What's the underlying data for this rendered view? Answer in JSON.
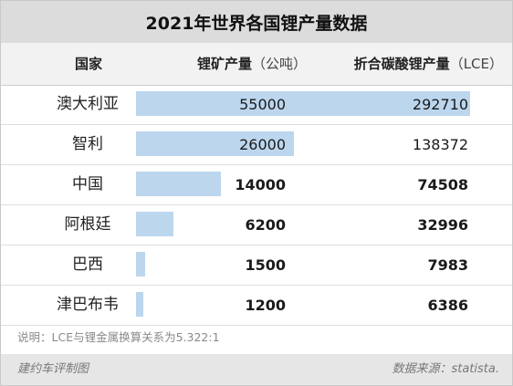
{
  "title": "2021年世界各国锂产量数据",
  "header": {
    "country": "国家",
    "mine_label": "锂矿产量",
    "mine_unit": "（公吨）",
    "lce_label": "折合碳酸锂产量",
    "lce_unit": "（LCE）"
  },
  "rows": [
    {
      "country": "澳大利亚",
      "mine": "55000",
      "lce": "292710"
    },
    {
      "country": "智利",
      "mine": "26000",
      "lce": "138372"
    },
    {
      "country": "中国",
      "mine": "14000",
      "lce": "74508"
    },
    {
      "country": "阿根廷",
      "mine": "6200",
      "lce": "32996"
    },
    {
      "country": "巴西",
      "mine": "1500",
      "lce": "7983"
    },
    {
      "country": "津巴布韦",
      "mine": "1200",
      "lce": "6386"
    }
  ],
  "note": "说明：LCE与锂金属换算关系为5.322:1",
  "footer": {
    "left": "建约车评制图",
    "right": "数据来源：statista."
  },
  "colors": {
    "bar": "#bcd6ee",
    "title_bg": "#dcdcdc",
    "header_bg": "#f2f2f2",
    "footer_bg": "#e6e6e6"
  }
}
